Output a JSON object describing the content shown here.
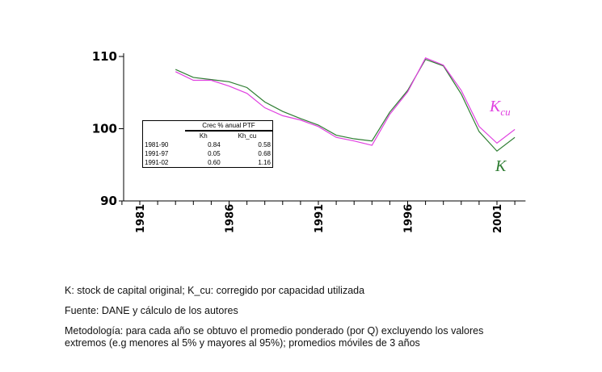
{
  "chart_data": {
    "type": "line",
    "title": "",
    "xlabel": "",
    "ylabel": "",
    "x": [
      1983,
      1984,
      1985,
      1986,
      1987,
      1988,
      1989,
      1990,
      1991,
      1992,
      1993,
      1994,
      1995,
      1996,
      1997,
      1998,
      1999,
      2000,
      2001,
      2002
    ],
    "xlim": [
      1980,
      2002
    ],
    "ylim": [
      90,
      110
    ],
    "yticks": [
      90,
      100,
      110
    ],
    "xticks": [
      1981,
      1986,
      1991,
      1996,
      2001
    ],
    "series": [
      {
        "name": "K",
        "color": "#2e7d32",
        "values": [
          108.2,
          107.1,
          106.8,
          106.5,
          105.7,
          103.7,
          102.4,
          101.4,
          100.5,
          99.1,
          98.6,
          98.3,
          102.3,
          105.3,
          109.6,
          108.7,
          104.8,
          99.6,
          96.9,
          98.8
        ]
      },
      {
        "name": "Kcu",
        "label_main": "K",
        "label_sub": "cu",
        "color": "#e040e0",
        "values": [
          107.9,
          106.7,
          106.7,
          105.9,
          104.9,
          102.9,
          101.8,
          101.2,
          100.3,
          98.8,
          98.3,
          97.7,
          102.0,
          105.1,
          109.8,
          108.8,
          105.3,
          100.3,
          98.0,
          99.9
        ]
      }
    ],
    "inset_table": {
      "title": "Crec % anual PTF",
      "columns": [
        "Kh",
        "Kh_cu"
      ],
      "rows": [
        {
          "period": "1981-90",
          "kh": "0.84",
          "kh_cu": "0.58"
        },
        {
          "period": "1991-97",
          "kh": "0.05",
          "kh_cu": "0.68"
        },
        {
          "period": "1991-02",
          "kh": "0.60",
          "kh_cu": "1.16"
        }
      ]
    }
  },
  "notes": {
    "line1": "K: stock de capital original; K_cu: corregido por capacidad utilizada",
    "line2": "Fuente: DANE y cálculo de los autores",
    "line3": "Metodología: para cada año se obtuvo el promedio ponderado (por Q) excluyendo los valores extremos (e.g menores al 5% y mayores al 95%); promedios móviles de 3 años"
  }
}
